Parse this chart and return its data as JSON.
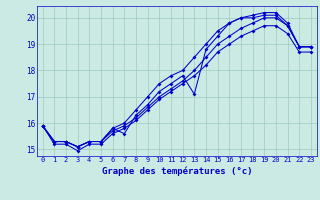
{
  "title": "Graphe des températures (°c)",
  "bg_color": "#cceae4",
  "line_color": "#0000cc",
  "grid_color": "#99ccbb",
  "xlim": [
    -0.5,
    23.5
  ],
  "ylim": [
    14.75,
    20.45
  ],
  "xticks": [
    0,
    1,
    2,
    3,
    4,
    5,
    6,
    7,
    8,
    9,
    10,
    11,
    12,
    13,
    14,
    15,
    16,
    17,
    18,
    19,
    20,
    21,
    22,
    23
  ],
  "yticks": [
    15,
    16,
    17,
    18,
    19,
    20
  ],
  "series": [
    {
      "x": [
        0,
        1,
        2,
        3,
        4,
        5,
        6,
        7,
        8,
        9,
        10,
        11,
        12,
        13,
        14,
        15,
        16,
        17,
        18,
        19,
        20,
        21,
        22,
        23
      ],
      "y": [
        15.9,
        15.3,
        15.3,
        15.1,
        15.3,
        15.3,
        15.8,
        15.6,
        16.3,
        16.7,
        17.2,
        17.5,
        17.8,
        17.1,
        18.8,
        19.3,
        19.8,
        20.0,
        20.0,
        20.1,
        20.1,
        19.7,
        18.9,
        18.9
      ]
    },
    {
      "x": [
        0,
        1,
        2,
        3,
        4,
        5,
        6,
        7,
        8,
        9,
        10,
        11,
        12,
        13,
        14,
        15,
        16,
        17,
        18,
        19,
        20,
        21,
        22,
        23
      ],
      "y": [
        15.9,
        15.3,
        15.3,
        15.1,
        15.3,
        15.3,
        15.8,
        16.0,
        16.5,
        17.0,
        17.5,
        17.8,
        18.0,
        18.5,
        19.0,
        19.5,
        19.8,
        20.0,
        20.1,
        20.2,
        20.2,
        19.8,
        18.9,
        18.9
      ]
    },
    {
      "x": [
        0,
        1,
        2,
        3,
        4,
        5,
        6,
        7,
        8,
        9,
        10,
        11,
        12,
        13,
        14,
        15,
        16,
        17,
        18,
        19,
        20,
        21,
        22,
        23
      ],
      "y": [
        15.9,
        15.3,
        15.3,
        15.1,
        15.3,
        15.3,
        15.7,
        15.9,
        16.2,
        16.6,
        17.0,
        17.3,
        17.6,
        18.0,
        18.5,
        19.0,
        19.3,
        19.6,
        19.8,
        20.0,
        20.0,
        19.7,
        18.9,
        18.9
      ]
    },
    {
      "x": [
        0,
        1,
        2,
        3,
        4,
        5,
        6,
        7,
        8,
        9,
        10,
        11,
        12,
        13,
        14,
        15,
        16,
        17,
        18,
        19,
        20,
        21,
        22,
        23
      ],
      "y": [
        15.9,
        15.2,
        15.2,
        14.95,
        15.2,
        15.2,
        15.6,
        15.8,
        16.1,
        16.5,
        16.9,
        17.2,
        17.5,
        17.8,
        18.2,
        18.7,
        19.0,
        19.3,
        19.5,
        19.7,
        19.7,
        19.4,
        18.7,
        18.7
      ]
    }
  ]
}
